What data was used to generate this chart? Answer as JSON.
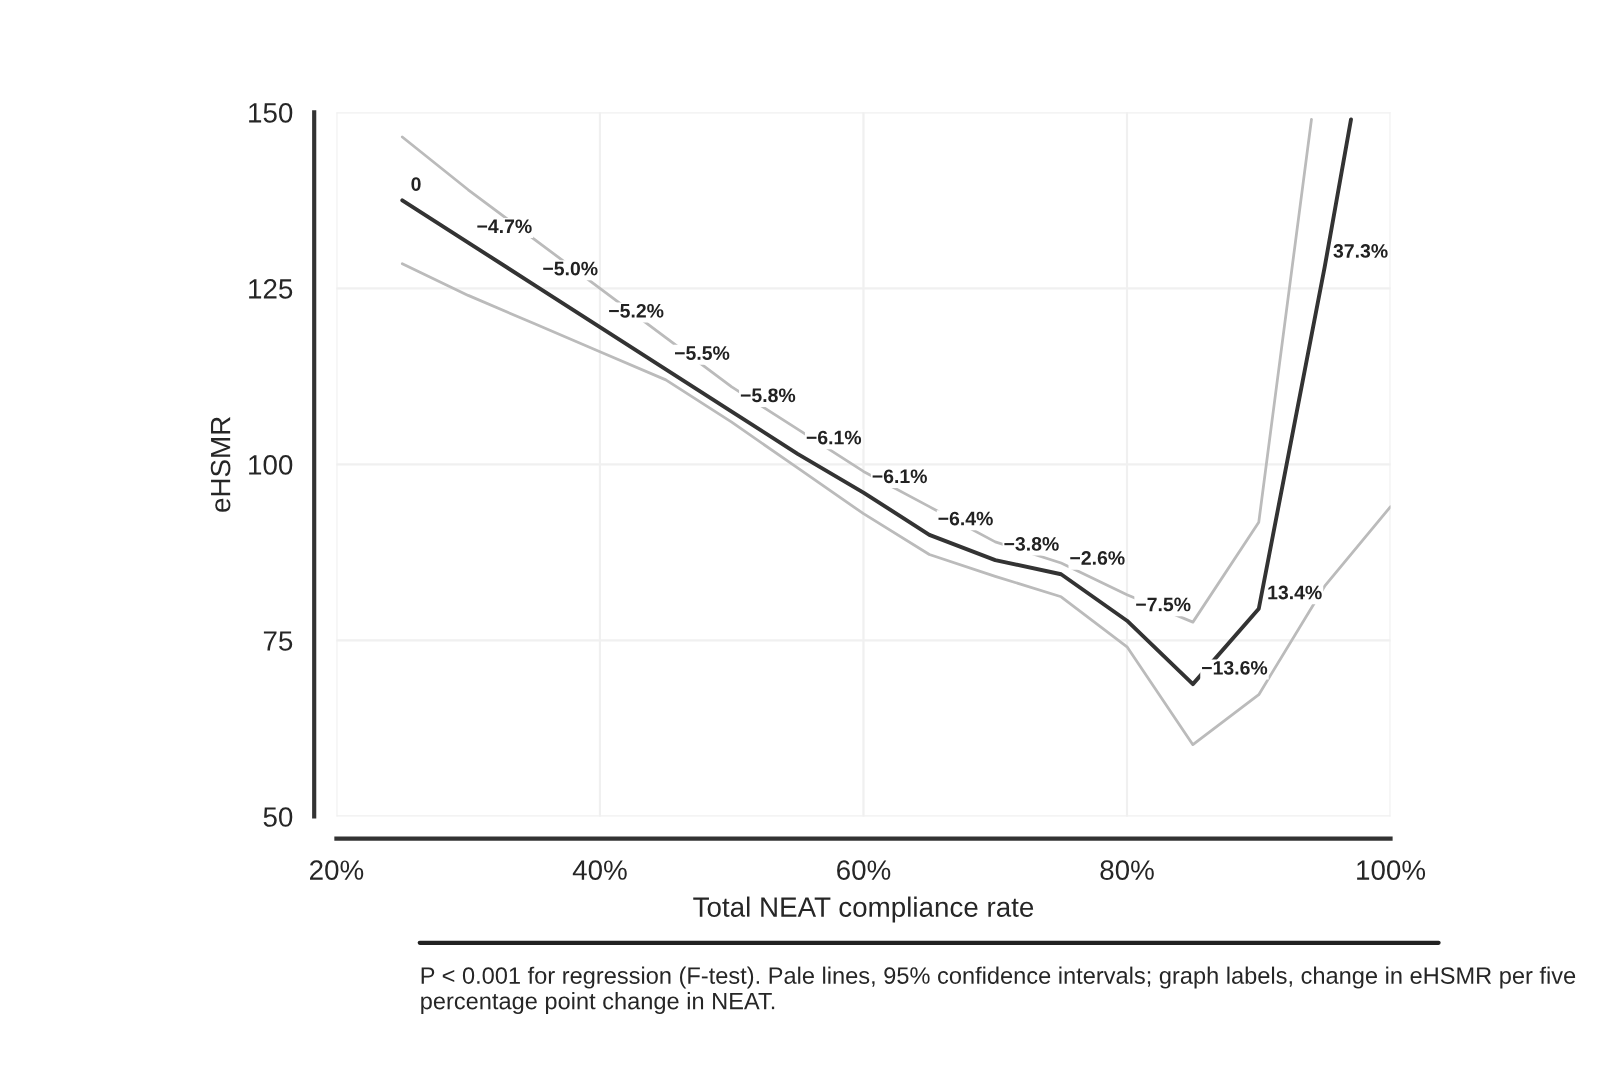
{
  "chart_data": {
    "type": "line",
    "xlabel": "Total NEAT compliance rate",
    "ylabel": "eHSMR",
    "xlim": [
      20,
      100
    ],
    "ylim": [
      50,
      150
    ],
    "xticks": [
      {
        "value": 20,
        "label": "20%"
      },
      {
        "value": 40,
        "label": "40%"
      },
      {
        "value": 60,
        "label": "60%"
      },
      {
        "value": 80,
        "label": "80%"
      },
      {
        "value": 100,
        "label": "100%"
      }
    ],
    "yticks": [
      50,
      75,
      100,
      125,
      150
    ],
    "grid": true,
    "line_style": "solid",
    "marker": "none",
    "series": [
      {
        "color": "#bbbbbb",
        "x": [
          25,
          30,
          35,
          40,
          45,
          50,
          55,
          60,
          65,
          70,
          75,
          80,
          85,
          90,
          94
        ],
        "values": [
          146.5,
          139,
          132,
          125,
          118,
          111,
          105,
          99,
          94,
          89,
          86,
          81.5,
          77.6,
          91.8,
          149
        ]
      },
      {
        "color": "#bbbbbb",
        "x": [
          25,
          30,
          35,
          40,
          45,
          50,
          55,
          60,
          65,
          70,
          75,
          80,
          85,
          90,
          95,
          100
        ],
        "values": [
          128.5,
          124,
          120,
          116,
          112,
          106,
          99.5,
          93,
          87.2,
          84.1,
          81.2,
          74.1,
          60.2,
          67.3,
          82.7,
          94
        ]
      },
      {
        "color": "#333333",
        "x": [
          25,
          30,
          35,
          40,
          45,
          50,
          55,
          60,
          65,
          70,
          75,
          80,
          85,
          90,
          95,
          97
        ],
        "values": [
          137.5,
          131.5,
          125.5,
          119.5,
          113.5,
          107.5,
          101.5,
          96,
          90,
          86.4,
          84.4,
          77.8,
          68.8,
          79.5,
          128,
          149
        ]
      }
    ],
    "annotations": [
      {
        "text": "0",
        "x": 25,
        "y": 137.5
      },
      {
        "text": "−4.7%",
        "x": 30,
        "y": 131.5
      },
      {
        "text": "−5.0%",
        "x": 35,
        "y": 125.5
      },
      {
        "text": "−5.2%",
        "x": 40,
        "y": 119.5
      },
      {
        "text": "−5.5%",
        "x": 45,
        "y": 113.5
      },
      {
        "text": "−5.8%",
        "x": 50,
        "y": 107.5
      },
      {
        "text": "−6.1%",
        "x": 55,
        "y": 101.5
      },
      {
        "text": "−6.1%",
        "x": 60,
        "y": 96
      },
      {
        "text": "−6.4%",
        "x": 65,
        "y": 90
      },
      {
        "text": "−3.8%",
        "x": 70,
        "y": 86.4
      },
      {
        "text": "−2.6%",
        "x": 75,
        "y": 84.4
      },
      {
        "text": "−7.5%",
        "x": 80,
        "y": 77.8
      },
      {
        "text": "−13.6%",
        "x": 85,
        "y": 68.8
      },
      {
        "text": "13.4%",
        "x": 90,
        "y": 79.5
      },
      {
        "text": "37.3%",
        "x": 95,
        "y": 128
      },
      "P < 0.001 for regression (F-test). Pale lines, 95% confidence intervals; graph labels, change in eHSMR per five percentage point change in NEAT."
    ]
  }
}
